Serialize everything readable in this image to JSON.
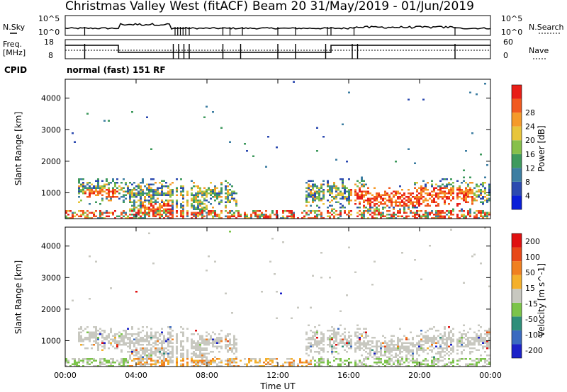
{
  "header": {
    "title_left": "Christmas Valley West (fitACF)",
    "title_right": "Beam 20  31/May/2019 - 01/Jun/2019",
    "cpid_label": "CPID",
    "cpid_value": "normal (fast) 151 RF",
    "nsky_label": "N.Sky",
    "nsearch_label": "N.Search",
    "freq_label_1": "Freq.",
    "freq_label_2": "[MHz]",
    "nave_label": "Nave",
    "nsky_ticks": [
      "10^5",
      "10^0"
    ],
    "nsearch_ticks": [
      "10^5",
      "10^0"
    ],
    "freq_ticks": [
      "18",
      "8"
    ],
    "nave_ticks": [
      "60",
      "0"
    ]
  },
  "chart_data": [
    {
      "type": "heatmap",
      "panel": "power",
      "ylabel": "Slant Range [km]",
      "ylim": [
        180,
        4600
      ],
      "yticks": [
        "1000",
        "2000",
        "3000",
        "4000"
      ],
      "xlim": [
        0,
        24
      ],
      "colorbar": {
        "label": "Power [dB]",
        "ticks": [
          "4",
          "8",
          "12",
          "16",
          "20",
          "24",
          "28"
        ],
        "colors": [
          "#0a1fd8",
          "#2c4ab0",
          "#3d7ea2",
          "#3f9a5e",
          "#87c04b",
          "#e8c53b",
          "#f59a2a",
          "#f15a1f",
          "#e81e17"
        ]
      }
    },
    {
      "type": "heatmap",
      "panel": "velocity",
      "ylabel": "Slant Range [km]",
      "ylim": [
        180,
        4600
      ],
      "yticks": [
        "1000",
        "2000",
        "3000",
        "4000"
      ],
      "xlim": [
        0,
        24
      ],
      "colorbar": {
        "label": "Velocity [m s^-1]",
        "ticks": [
          "200",
          "100",
          "50",
          "15",
          "-15",
          "-50",
          "-100",
          "-200"
        ],
        "colors": [
          "#1c22c8",
          "#3a6ac0",
          "#2f8e7a",
          "#7cc44a",
          "#c8c8c0",
          "#f4b02c",
          "#f08020",
          "#e84818",
          "#e01010"
        ]
      }
    }
  ],
  "xaxis": {
    "label": "Time UT",
    "ticks": [
      "00:00",
      "04:00",
      "08:00",
      "12:00",
      "16:00",
      "20:00",
      "00:00"
    ]
  }
}
